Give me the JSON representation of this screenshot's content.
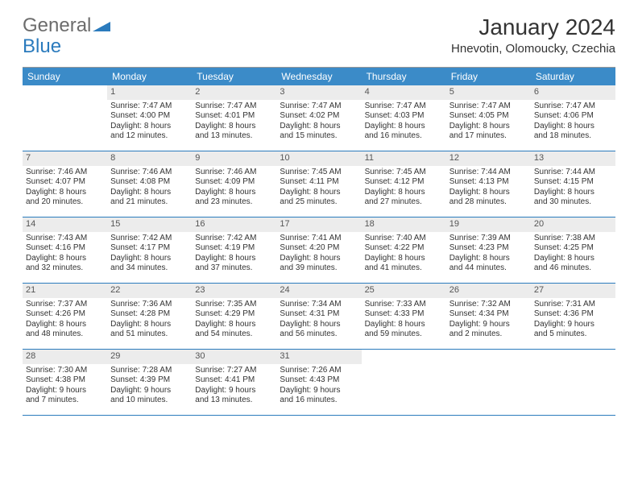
{
  "logo": {
    "general": "General",
    "blue": "Blue"
  },
  "title": "January 2024",
  "location": "Hnevotin, Olomoucky, Czechia",
  "dow_header_bg": "#3b8bc8",
  "dow_header_fg": "#ffffff",
  "daynum_bg": "#ececec",
  "border_color": "#2b7bbd",
  "days_of_week": [
    "Sunday",
    "Monday",
    "Tuesday",
    "Wednesday",
    "Thursday",
    "Friday",
    "Saturday"
  ],
  "weeks": [
    [
      null,
      {
        "n": "1",
        "sr": "Sunrise: 7:47 AM",
        "ss": "Sunset: 4:00 PM",
        "d1": "Daylight: 8 hours",
        "d2": "and 12 minutes."
      },
      {
        "n": "2",
        "sr": "Sunrise: 7:47 AM",
        "ss": "Sunset: 4:01 PM",
        "d1": "Daylight: 8 hours",
        "d2": "and 13 minutes."
      },
      {
        "n": "3",
        "sr": "Sunrise: 7:47 AM",
        "ss": "Sunset: 4:02 PM",
        "d1": "Daylight: 8 hours",
        "d2": "and 15 minutes."
      },
      {
        "n": "4",
        "sr": "Sunrise: 7:47 AM",
        "ss": "Sunset: 4:03 PM",
        "d1": "Daylight: 8 hours",
        "d2": "and 16 minutes."
      },
      {
        "n": "5",
        "sr": "Sunrise: 7:47 AM",
        "ss": "Sunset: 4:05 PM",
        "d1": "Daylight: 8 hours",
        "d2": "and 17 minutes."
      },
      {
        "n": "6",
        "sr": "Sunrise: 7:47 AM",
        "ss": "Sunset: 4:06 PM",
        "d1": "Daylight: 8 hours",
        "d2": "and 18 minutes."
      }
    ],
    [
      {
        "n": "7",
        "sr": "Sunrise: 7:46 AM",
        "ss": "Sunset: 4:07 PM",
        "d1": "Daylight: 8 hours",
        "d2": "and 20 minutes."
      },
      {
        "n": "8",
        "sr": "Sunrise: 7:46 AM",
        "ss": "Sunset: 4:08 PM",
        "d1": "Daylight: 8 hours",
        "d2": "and 21 minutes."
      },
      {
        "n": "9",
        "sr": "Sunrise: 7:46 AM",
        "ss": "Sunset: 4:09 PM",
        "d1": "Daylight: 8 hours",
        "d2": "and 23 minutes."
      },
      {
        "n": "10",
        "sr": "Sunrise: 7:45 AM",
        "ss": "Sunset: 4:11 PM",
        "d1": "Daylight: 8 hours",
        "d2": "and 25 minutes."
      },
      {
        "n": "11",
        "sr": "Sunrise: 7:45 AM",
        "ss": "Sunset: 4:12 PM",
        "d1": "Daylight: 8 hours",
        "d2": "and 27 minutes."
      },
      {
        "n": "12",
        "sr": "Sunrise: 7:44 AM",
        "ss": "Sunset: 4:13 PM",
        "d1": "Daylight: 8 hours",
        "d2": "and 28 minutes."
      },
      {
        "n": "13",
        "sr": "Sunrise: 7:44 AM",
        "ss": "Sunset: 4:15 PM",
        "d1": "Daylight: 8 hours",
        "d2": "and 30 minutes."
      }
    ],
    [
      {
        "n": "14",
        "sr": "Sunrise: 7:43 AM",
        "ss": "Sunset: 4:16 PM",
        "d1": "Daylight: 8 hours",
        "d2": "and 32 minutes."
      },
      {
        "n": "15",
        "sr": "Sunrise: 7:42 AM",
        "ss": "Sunset: 4:17 PM",
        "d1": "Daylight: 8 hours",
        "d2": "and 34 minutes."
      },
      {
        "n": "16",
        "sr": "Sunrise: 7:42 AM",
        "ss": "Sunset: 4:19 PM",
        "d1": "Daylight: 8 hours",
        "d2": "and 37 minutes."
      },
      {
        "n": "17",
        "sr": "Sunrise: 7:41 AM",
        "ss": "Sunset: 4:20 PM",
        "d1": "Daylight: 8 hours",
        "d2": "and 39 minutes."
      },
      {
        "n": "18",
        "sr": "Sunrise: 7:40 AM",
        "ss": "Sunset: 4:22 PM",
        "d1": "Daylight: 8 hours",
        "d2": "and 41 minutes."
      },
      {
        "n": "19",
        "sr": "Sunrise: 7:39 AM",
        "ss": "Sunset: 4:23 PM",
        "d1": "Daylight: 8 hours",
        "d2": "and 44 minutes."
      },
      {
        "n": "20",
        "sr": "Sunrise: 7:38 AM",
        "ss": "Sunset: 4:25 PM",
        "d1": "Daylight: 8 hours",
        "d2": "and 46 minutes."
      }
    ],
    [
      {
        "n": "21",
        "sr": "Sunrise: 7:37 AM",
        "ss": "Sunset: 4:26 PM",
        "d1": "Daylight: 8 hours",
        "d2": "and 48 minutes."
      },
      {
        "n": "22",
        "sr": "Sunrise: 7:36 AM",
        "ss": "Sunset: 4:28 PM",
        "d1": "Daylight: 8 hours",
        "d2": "and 51 minutes."
      },
      {
        "n": "23",
        "sr": "Sunrise: 7:35 AM",
        "ss": "Sunset: 4:29 PM",
        "d1": "Daylight: 8 hours",
        "d2": "and 54 minutes."
      },
      {
        "n": "24",
        "sr": "Sunrise: 7:34 AM",
        "ss": "Sunset: 4:31 PM",
        "d1": "Daylight: 8 hours",
        "d2": "and 56 minutes."
      },
      {
        "n": "25",
        "sr": "Sunrise: 7:33 AM",
        "ss": "Sunset: 4:33 PM",
        "d1": "Daylight: 8 hours",
        "d2": "and 59 minutes."
      },
      {
        "n": "26",
        "sr": "Sunrise: 7:32 AM",
        "ss": "Sunset: 4:34 PM",
        "d1": "Daylight: 9 hours",
        "d2": "and 2 minutes."
      },
      {
        "n": "27",
        "sr": "Sunrise: 7:31 AM",
        "ss": "Sunset: 4:36 PM",
        "d1": "Daylight: 9 hours",
        "d2": "and 5 minutes."
      }
    ],
    [
      {
        "n": "28",
        "sr": "Sunrise: 7:30 AM",
        "ss": "Sunset: 4:38 PM",
        "d1": "Daylight: 9 hours",
        "d2": "and 7 minutes."
      },
      {
        "n": "29",
        "sr": "Sunrise: 7:28 AM",
        "ss": "Sunset: 4:39 PM",
        "d1": "Daylight: 9 hours",
        "d2": "and 10 minutes."
      },
      {
        "n": "30",
        "sr": "Sunrise: 7:27 AM",
        "ss": "Sunset: 4:41 PM",
        "d1": "Daylight: 9 hours",
        "d2": "and 13 minutes."
      },
      {
        "n": "31",
        "sr": "Sunrise: 7:26 AM",
        "ss": "Sunset: 4:43 PM",
        "d1": "Daylight: 9 hours",
        "d2": "and 16 minutes."
      },
      null,
      null,
      null
    ]
  ]
}
